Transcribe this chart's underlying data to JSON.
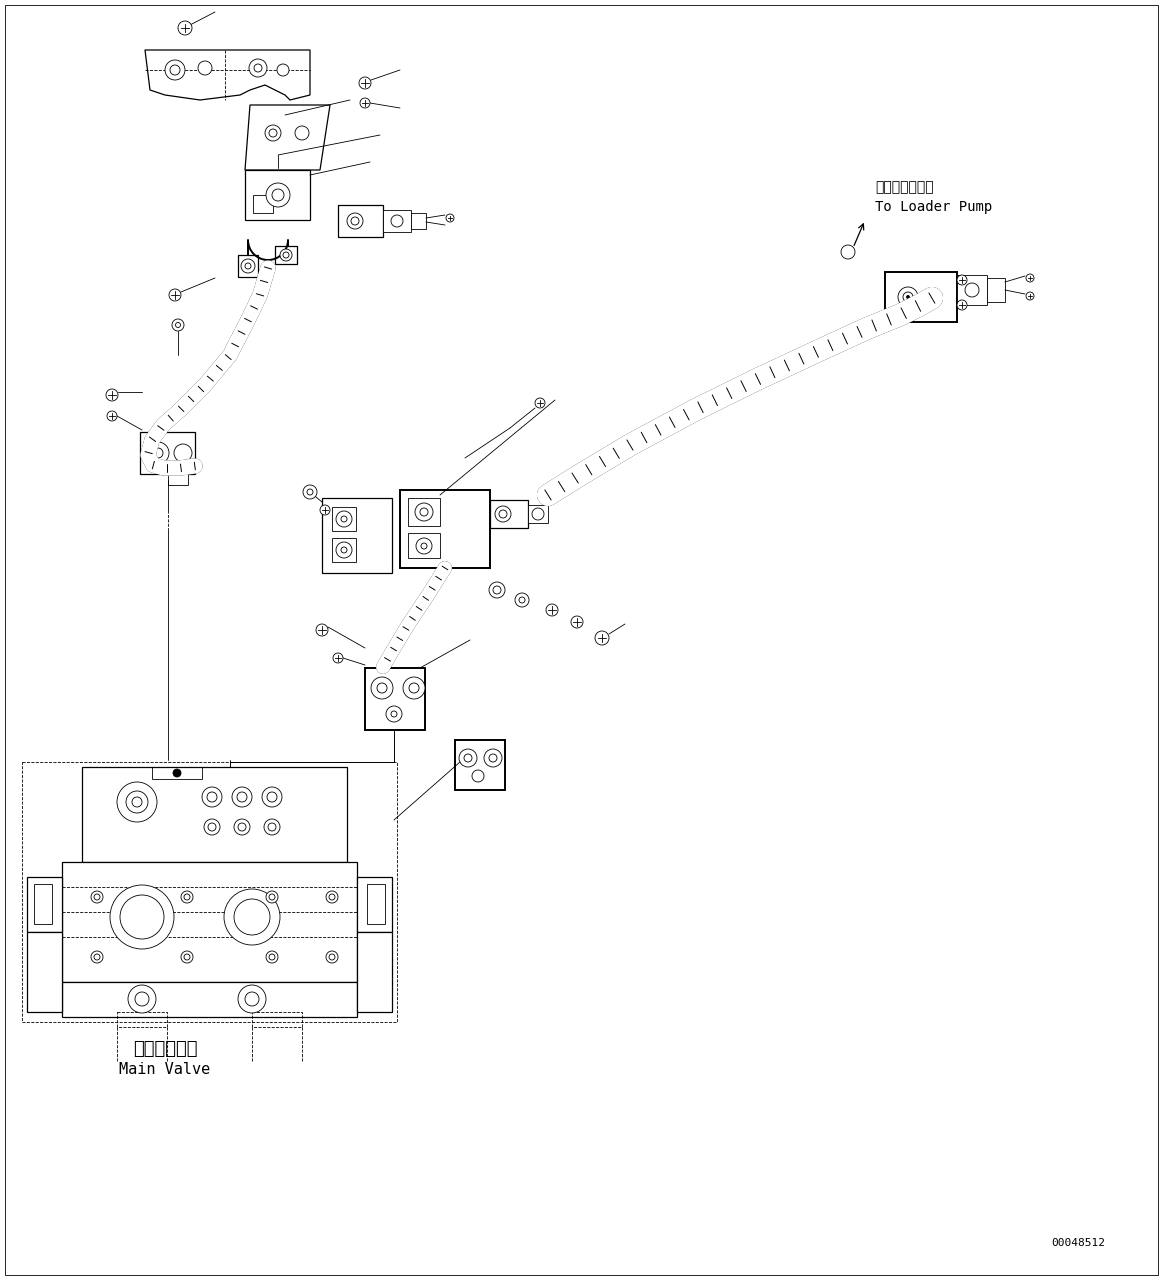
{
  "background_color": "#ffffff",
  "line_color": "#000000",
  "label_loader_pump_jp": "ローダポンプへ",
  "label_loader_pump_en": "To Loader Pump",
  "label_main_valve_jp": "メインバルブ",
  "label_main_valve_en": "Main Valve",
  "part_number": "00048512",
  "figsize": [
    11.63,
    12.8
  ],
  "dpi": 100
}
